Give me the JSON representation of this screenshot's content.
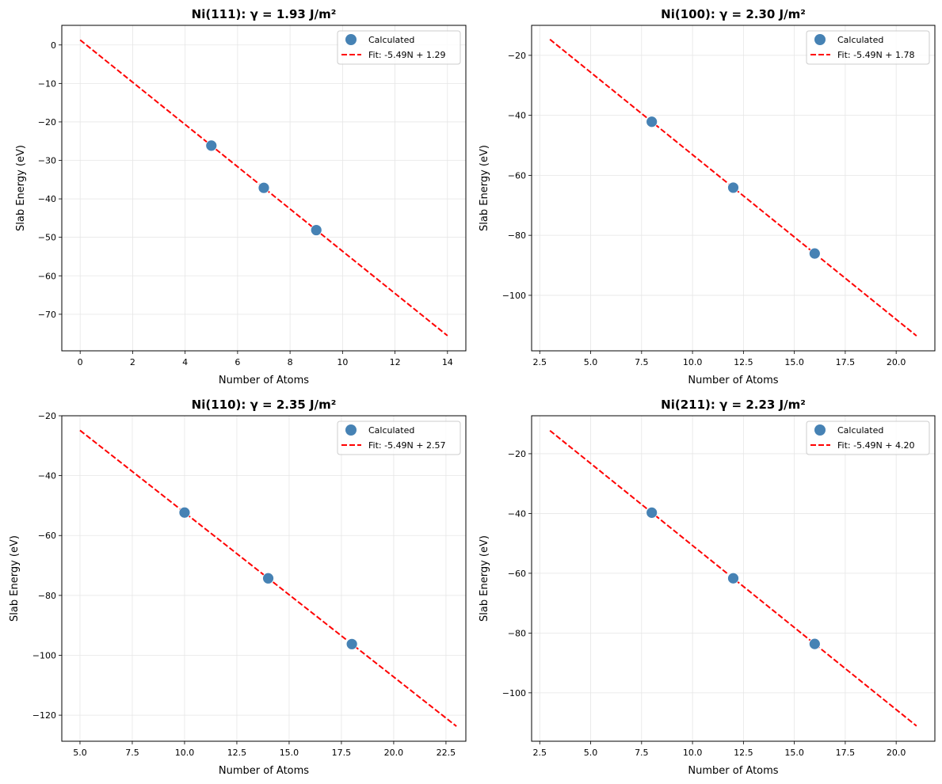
{
  "chart_data": [
    {
      "type": "scatter",
      "title": "Ni(111): γ = 1.93 J/m²",
      "xlabel": "Number of Atoms",
      "ylabel": "Slab Energy (eV)",
      "xlim": [
        -0.7,
        14.7
      ],
      "ylim": [
        -79.5,
        5.1
      ],
      "xticks": [
        0,
        2,
        4,
        6,
        8,
        10,
        12,
        14
      ],
      "yticks": [
        0,
        -10,
        -20,
        -30,
        -40,
        -50,
        -60,
        -70
      ],
      "grid": true,
      "legend_position": "top-right",
      "series": [
        {
          "name": "Calculated",
          "kind": "scatter",
          "color": "#4682b4",
          "x": [
            5,
            7,
            9
          ],
          "y": [
            -26.16,
            -37.14,
            -48.12
          ]
        },
        {
          "name": "Fit: -5.49N + 1.29",
          "kind": "dashed-line",
          "color": "#ff0000",
          "x": [
            0,
            14
          ],
          "y": [
            1.29,
            -75.57
          ]
        }
      ]
    },
    {
      "type": "scatter",
      "title": "Ni(100): γ = 2.30 J/m²",
      "xlabel": "Number of Atoms",
      "ylabel": "Slab Energy (eV)",
      "xlim": [
        2.1,
        21.9
      ],
      "ylim": [
        -118.5,
        -10
      ],
      "xticks": [
        2.5,
        5.0,
        7.5,
        10.0,
        12.5,
        15.0,
        17.5,
        20.0
      ],
      "yticks": [
        -20,
        -40,
        -60,
        -80,
        -100
      ],
      "grid": true,
      "legend_position": "top-right",
      "series": [
        {
          "name": "Calculated",
          "kind": "scatter",
          "color": "#4682b4",
          "x": [
            8,
            12,
            16
          ],
          "y": [
            -42.14,
            -64.1,
            -86.06
          ]
        },
        {
          "name": "Fit: -5.49N + 1.78",
          "kind": "dashed-line",
          "color": "#ff0000",
          "x": [
            3,
            21
          ],
          "y": [
            -14.69,
            -113.51
          ]
        }
      ]
    },
    {
      "type": "scatter",
      "title": "Ni(110): γ = 2.35 J/m²",
      "xlabel": "Number of Atoms",
      "ylabel": "Slab Energy (eV)",
      "xlim": [
        4.13,
        23.45
      ],
      "ylim": [
        -128.7,
        -20
      ],
      "xticks": [
        5.0,
        7.5,
        10.0,
        12.5,
        15.0,
        17.5,
        20.0,
        22.5
      ],
      "yticks": [
        -20,
        -40,
        -60,
        -80,
        -100,
        -120
      ],
      "grid": true,
      "legend_position": "top-right",
      "series": [
        {
          "name": "Calculated",
          "kind": "scatter",
          "color": "#4682b4",
          "x": [
            10,
            14,
            18
          ],
          "y": [
            -52.33,
            -74.29,
            -96.25
          ]
        },
        {
          "name": "Fit: -5.49N + 2.57",
          "kind": "dashed-line",
          "color": "#ff0000",
          "x": [
            5,
            23
          ],
          "y": [
            -24.88,
            -123.7
          ]
        }
      ]
    },
    {
      "type": "scatter",
      "title": "Ni(211): γ = 2.23 J/m²",
      "xlabel": "Number of Atoms",
      "ylabel": "Slab Energy (eV)",
      "xlim": [
        2.1,
        21.9
      ],
      "ylim": [
        -116.2,
        -7.3
      ],
      "xticks": [
        2.5,
        5.0,
        7.5,
        10.0,
        12.5,
        15.0,
        17.5,
        20.0
      ],
      "yticks": [
        -20,
        -40,
        -60,
        -80,
        -100
      ],
      "grid": true,
      "legend_position": "top-right",
      "series": [
        {
          "name": "Calculated",
          "kind": "scatter",
          "color": "#4682b4",
          "x": [
            8,
            12,
            16
          ],
          "y": [
            -39.72,
            -61.68,
            -83.64
          ]
        },
        {
          "name": "Fit: -5.49N + 4.20",
          "kind": "dashed-line",
          "color": "#ff0000",
          "x": [
            3,
            21
          ],
          "y": [
            -12.27,
            -111.09
          ]
        }
      ]
    }
  ]
}
